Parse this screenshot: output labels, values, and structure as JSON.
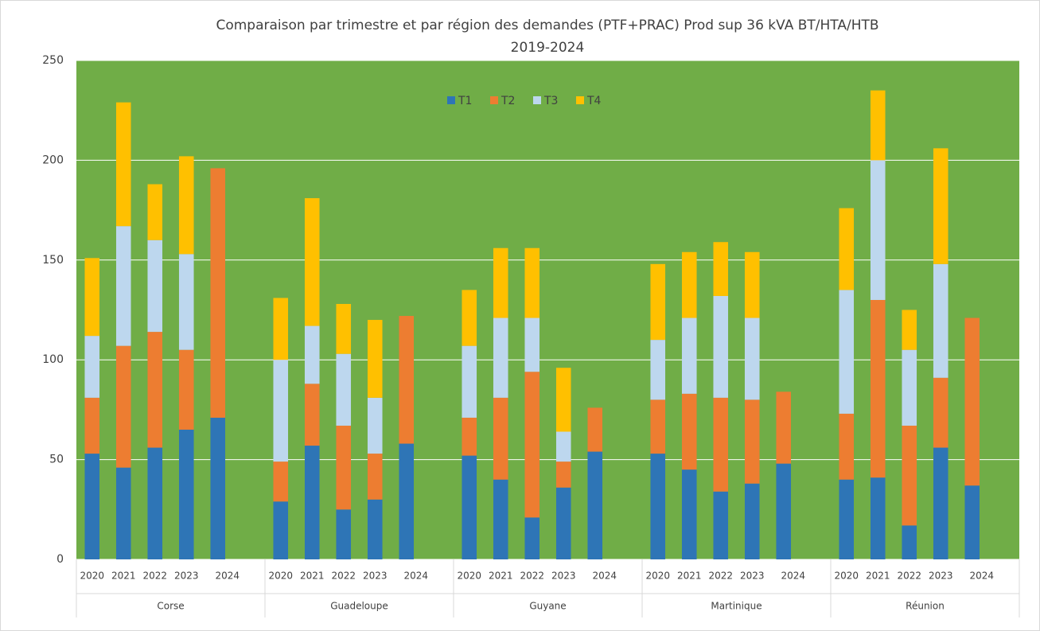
{
  "chart_data": {
    "type": "stacked_bar",
    "title": "Comparaison par trimestre et par région des demandes (PTF+PRAC)  Prod sup 36 kVA BT/HTA/HTB",
    "subtitle": "2019-2024",
    "groups": [
      "Corse",
      "Guadeloupe",
      "Guyane",
      "Martinique",
      "Réunion"
    ],
    "categories": [
      "2020",
      "2021",
      "2022",
      "2023",
      "2024",
      "2020",
      "2021",
      "2022",
      "2023",
      "2024",
      "2020",
      "2021",
      "2022",
      "2023",
      "2024",
      "2020",
      "2021",
      "2022",
      "2023",
      "2024",
      "2020",
      "2021",
      "2022",
      "2023",
      "2024"
    ],
    "series": [
      {
        "name": "T1",
        "color": "#2e75b6",
        "values": [
          53,
          46,
          56,
          65,
          71,
          29,
          57,
          25,
          30,
          58,
          52,
          40,
          21,
          36,
          54,
          53,
          45,
          34,
          38,
          48,
          40,
          41,
          17,
          56,
          37
        ]
      },
      {
        "name": "T2",
        "color": "#ed7d31",
        "values": [
          28,
          61,
          58,
          40,
          125,
          20,
          31,
          42,
          23,
          64,
          19,
          41,
          73,
          13,
          22,
          27,
          38,
          47,
          42,
          36,
          33,
          89,
          50,
          35,
          84
        ]
      },
      {
        "name": "T3",
        "color": "#bdd7ee",
        "values": [
          31,
          60,
          46,
          48,
          null,
          51,
          29,
          36,
          28,
          null,
          36,
          40,
          27,
          15,
          null,
          30,
          38,
          51,
          41,
          null,
          62,
          70,
          38,
          57,
          null
        ]
      },
      {
        "name": "T4",
        "color": "#ffc000",
        "values": [
          39,
          62,
          28,
          49,
          null,
          31,
          64,
          25,
          39,
          null,
          28,
          35,
          35,
          32,
          null,
          38,
          33,
          27,
          33,
          null,
          41,
          35,
          20,
          58,
          null
        ]
      }
    ],
    "ylim": [
      0,
      250
    ],
    "yticks": [
      0,
      50,
      100,
      150,
      200,
      250
    ],
    "grid": true,
    "plot_background": "#70ad47",
    "legend": "top"
  }
}
